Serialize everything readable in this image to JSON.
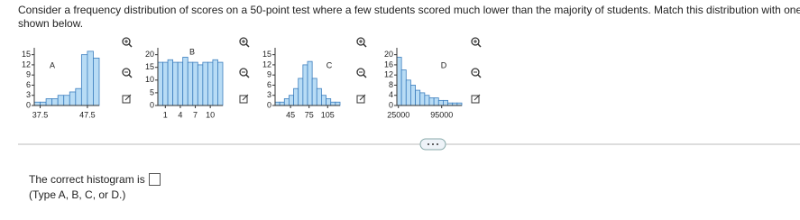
{
  "question": {
    "text": "Consider a frequency distribution of scores on a 50-point test where a few students scored much lower than the majority of students. Match this distribution with one of the graphs",
    "text_end": "shown below."
  },
  "chart_data": [
    {
      "type": "histogram",
      "label": "A",
      "bins": [
        36.25,
        37.5,
        38.75,
        40,
        41.25,
        42.5,
        43.75,
        45,
        46.25,
        47.5,
        48.75,
        50
      ],
      "values": [
        1,
        1,
        2,
        2,
        3,
        3,
        4,
        5,
        15,
        16,
        14
      ],
      "xlim": [
        36.25,
        50
      ],
      "xticks": [
        37.5,
        47.5
      ],
      "ylim": [
        0,
        16.5
      ],
      "yticks": [
        0,
        3,
        6,
        9,
        12,
        15
      ],
      "color": "#b8dcf5"
    },
    {
      "type": "histogram",
      "label": "B",
      "bins": [
        -0.5,
        0.5,
        1.5,
        2.5,
        3.5,
        4.5,
        5.5,
        6.5,
        7.5,
        8.5,
        9.5,
        10.5,
        11.5,
        12.5
      ],
      "values": [
        17,
        17,
        18,
        17,
        17,
        19,
        17,
        17,
        16,
        17,
        17,
        18,
        17
      ],
      "xlim": [
        -0.5,
        12.5
      ],
      "xticks": [
        1,
        4,
        7,
        10
      ],
      "ylim": [
        0,
        22
      ],
      "yticks": [
        0,
        5,
        10,
        15,
        20
      ],
      "color": "#b8dcf5"
    },
    {
      "type": "histogram",
      "label": "C",
      "bins": [
        20,
        27.5,
        35,
        42.5,
        50,
        57.5,
        65,
        72.5,
        80,
        87.5,
        95,
        102.5,
        110,
        117.5,
        125
      ],
      "values": [
        1,
        1,
        2,
        3,
        5,
        8,
        12,
        13,
        8,
        5,
        3,
        2,
        1,
        1
      ],
      "xlim": [
        20,
        125
      ],
      "xticks": [
        45,
        75,
        105
      ],
      "ylim": [
        0,
        16.5
      ],
      "yticks": [
        0,
        3,
        6,
        9,
        12,
        15
      ],
      "color": "#b8dcf5"
    },
    {
      "type": "histogram",
      "label": "D",
      "bins": [
        22500,
        30000,
        37500,
        45000,
        52500,
        60000,
        67500,
        75000,
        82500,
        90000,
        97500,
        105000,
        112500,
        120000,
        127500
      ],
      "values": [
        19,
        14,
        10,
        8,
        6,
        5,
        4,
        3,
        3,
        2,
        2,
        1,
        1,
        1
      ],
      "xlim": [
        22500,
        127500
      ],
      "xticks": [
        25000,
        95000
      ],
      "ylim": [
        0,
        22
      ],
      "yticks": [
        0,
        4,
        8,
        12,
        16,
        20
      ],
      "color": "#b8dcf5"
    }
  ],
  "answer": {
    "prompt": "The correct histogram is",
    "hint": "(Type A, B, C, or D.)"
  }
}
